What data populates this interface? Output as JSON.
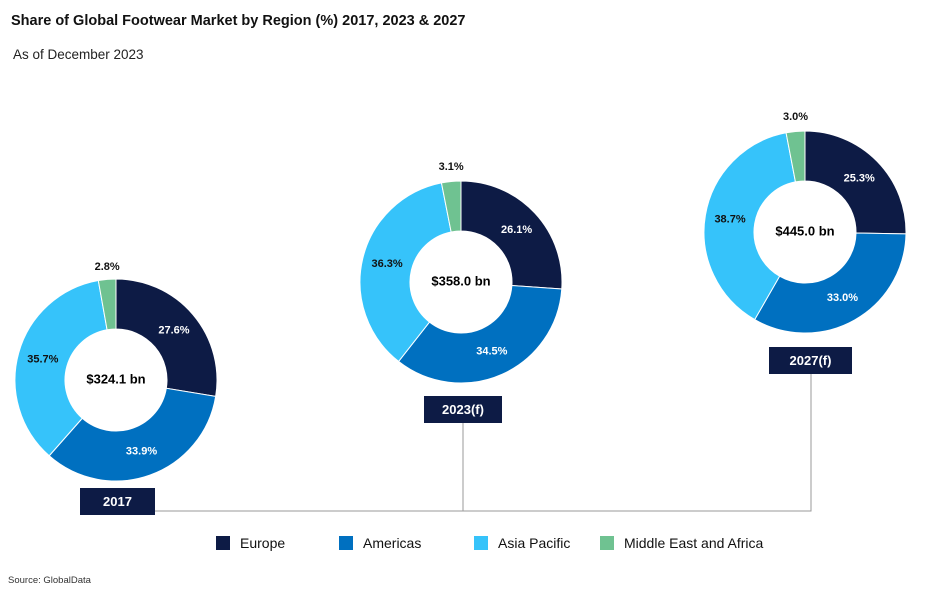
{
  "title": "Share of Global Footwear Market by Region (%) 2017, 2023 & 2027",
  "subtitle": "As of December 2023",
  "source": "Source: GlobalData",
  "colors": {
    "Europe": "#0d1b45",
    "Americas": "#0070c0",
    "Asia Pacific": "#36c3fa",
    "Middle East and Africa": "#6fc291"
  },
  "chart_data": [
    {
      "type": "donut",
      "label": "2017",
      "center_label": "$324.1 bn",
      "categories": [
        "Europe",
        "Americas",
        "Asia Pacific",
        "Middle East and Africa"
      ],
      "values": [
        27.6,
        33.9,
        35.7,
        2.8
      ],
      "value_labels": [
        "27.6%",
        "33.9%",
        "35.7%",
        "2.8%"
      ]
    },
    {
      "type": "donut",
      "label": "2023(f)",
      "center_label": "$358.0 bn",
      "categories": [
        "Europe",
        "Americas",
        "Asia Pacific",
        "Middle East and Africa"
      ],
      "values": [
        26.1,
        34.5,
        36.3,
        3.1
      ],
      "value_labels": [
        "26.1%",
        "34.5%",
        "36.3%",
        "3.1%"
      ]
    },
    {
      "type": "donut",
      "label": "2027(f)",
      "center_label": "$445.0 bn",
      "categories": [
        "Europe",
        "Americas",
        "Asia Pacific",
        "Middle East and Africa"
      ],
      "values": [
        25.3,
        33.0,
        38.7,
        3.0
      ],
      "value_labels": [
        "25.3%",
        "33.0%",
        "38.7%",
        "3.0%"
      ]
    }
  ],
  "legend": [
    {
      "label": "Europe",
      "color": "#0d1b45"
    },
    {
      "label": "Americas",
      "color": "#0070c0"
    },
    {
      "label": "Asia Pacific",
      "color": "#36c3fa"
    },
    {
      "label": "Middle East and Africa",
      "color": "#6fc291"
    }
  ]
}
